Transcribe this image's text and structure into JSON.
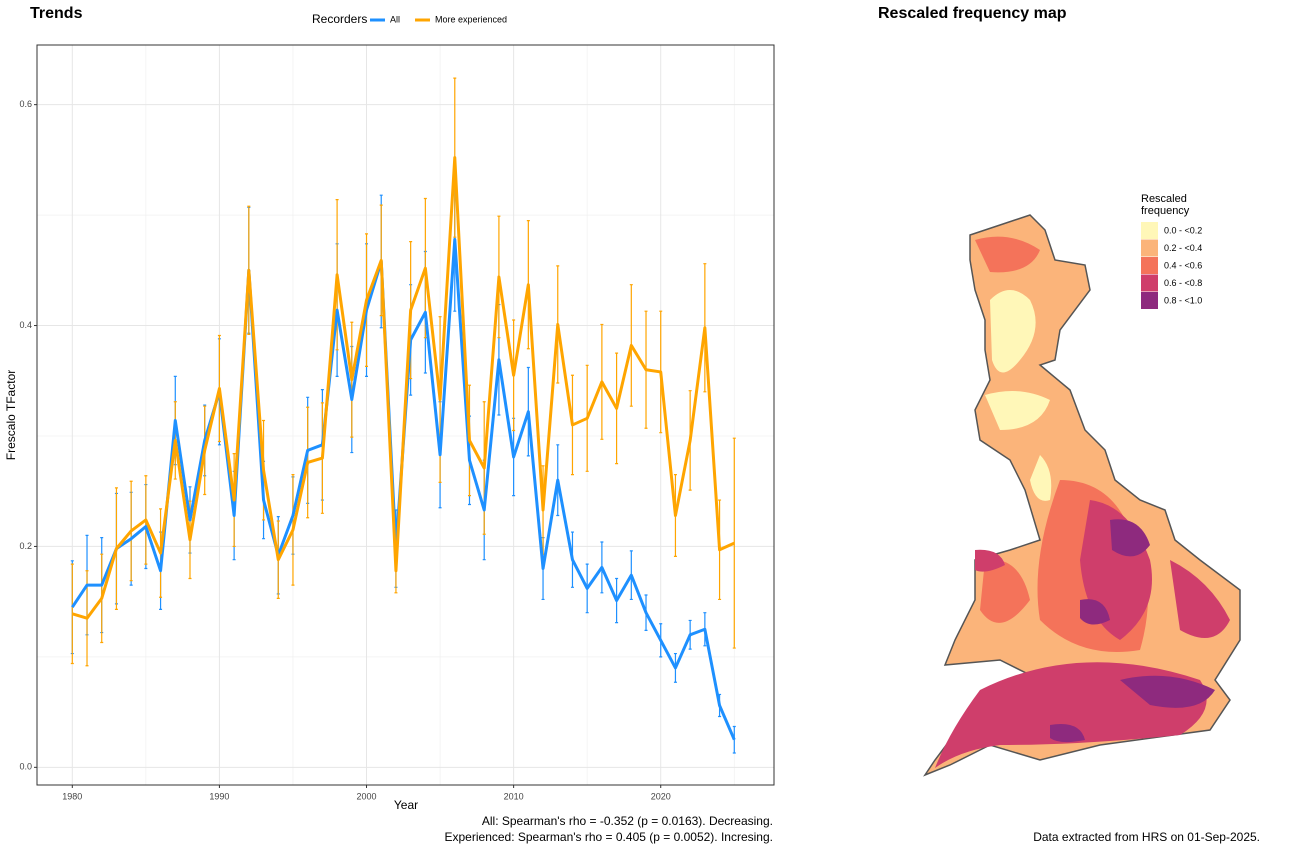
{
  "chart_data": {
    "type": "line",
    "title": "Trends",
    "xlabel": "Year",
    "ylabel": "Frescalo TFactor",
    "legend_title": "Recorders",
    "legend_position": "top",
    "x": [
      1980,
      1981,
      1982,
      1983,
      1984,
      1985,
      1986,
      1987,
      1988,
      1989,
      1990,
      1991,
      1992,
      1993,
      1994,
      1995,
      1996,
      1997,
      1998,
      1999,
      2000,
      2001,
      2002,
      2003,
      2004,
      2005,
      2006,
      2007,
      2008,
      2009,
      2010,
      2011,
      2012,
      2013,
      2014,
      2015,
      2016,
      2017,
      2018,
      2019,
      2020,
      2021,
      2022,
      2023,
      2024,
      2025
    ],
    "series": [
      {
        "name": "All",
        "color": "#1E90FF",
        "values": [
          0.145,
          0.165,
          0.165,
          0.198,
          0.207,
          0.218,
          0.178,
          0.314,
          0.224,
          0.296,
          0.34,
          0.228,
          0.45,
          0.242,
          0.192,
          0.228,
          0.287,
          0.292,
          0.414,
          0.333,
          0.414,
          0.458,
          0.198,
          0.387,
          0.412,
          0.283,
          0.478,
          0.278,
          0.233,
          0.369,
          0.281,
          0.322,
          0.18,
          0.26,
          0.188,
          0.162,
          0.181,
          0.151,
          0.174,
          0.14,
          0.115,
          0.09,
          0.12,
          0.125,
          0.056,
          0.025
        ],
        "errors": [
          0.042,
          0.045,
          0.043,
          0.05,
          0.042,
          0.038,
          0.035,
          0.04,
          0.03,
          0.032,
          0.048,
          0.04,
          0.057,
          0.035,
          0.035,
          0.035,
          0.048,
          0.05,
          0.06,
          0.048,
          0.06,
          0.06,
          0.035,
          0.05,
          0.055,
          0.048,
          0.065,
          0.04,
          0.045,
          0.05,
          0.035,
          0.04,
          0.028,
          0.032,
          0.025,
          0.022,
          0.023,
          0.02,
          0.022,
          0.016,
          0.015,
          0.013,
          0.013,
          0.015,
          0.01,
          0.012
        ]
      },
      {
        "name": "More experienced",
        "color": "#FFA500",
        "values": [
          0.139,
          0.135,
          0.153,
          0.198,
          0.214,
          0.224,
          0.194,
          0.296,
          0.206,
          0.287,
          0.343,
          0.242,
          0.45,
          0.269,
          0.188,
          0.215,
          0.276,
          0.28,
          0.446,
          0.351,
          0.423,
          0.459,
          0.178,
          0.414,
          0.452,
          0.333,
          0.552,
          0.296,
          0.271,
          0.444,
          0.355,
          0.437,
          0.233,
          0.401,
          0.31,
          0.316,
          0.349,
          0.325,
          0.382,
          0.36,
          0.358,
          0.228,
          0.296,
          0.398,
          0.197,
          0.203
        ],
        "errors": [
          0.045,
          0.043,
          0.04,
          0.055,
          0.045,
          0.04,
          0.04,
          0.035,
          0.035,
          0.04,
          0.048,
          0.042,
          0.058,
          0.045,
          0.035,
          0.05,
          0.05,
          0.05,
          0.068,
          0.052,
          0.06,
          0.05,
          0.02,
          0.062,
          0.063,
          0.075,
          0.072,
          0.05,
          0.06,
          0.055,
          0.05,
          0.058,
          0.04,
          0.053,
          0.045,
          0.048,
          0.052,
          0.05,
          0.055,
          0.053,
          0.055,
          0.037,
          0.045,
          0.058,
          0.045,
          0.095
        ]
      }
    ],
    "xlim": [
      1977.6,
      2027.7
    ],
    "ylim": [
      -0.016,
      0.654
    ],
    "xticks": [
      1980,
      1990,
      2000,
      2010,
      2020
    ],
    "yticks": [
      {
        "value": 0,
        "label": "0.0"
      },
      0.2,
      0.4,
      0.6
    ],
    "x_minor_ticks": [
      1985,
      1995,
      2005,
      2015,
      2025
    ],
    "y_minor_ticks": [
      0.1,
      0.3,
      0.5
    ],
    "grid": true,
    "annotations": [
      "All: Spearman's rho = -0.352 (p = 0.0163). Decreasing.",
      "Experienced: Spearman's rho = 0.405 (p = 0.0052). Incresing."
    ]
  },
  "map": {
    "title": "Rescaled frequency map",
    "legend_title": "Rescaled frequency",
    "legend": [
      {
        "label": "0.0 - <0.2",
        "color": "#FFF7B8"
      },
      {
        "label": "0.2 - <0.4",
        "color": "#FBB47A"
      },
      {
        "label": "0.4 - <0.6",
        "color": "#F4735A"
      },
      {
        "label": "0.6 - <0.8",
        "color": "#CF3E6B"
      },
      {
        "label": "0.8 - <1.0",
        "color": "#8E2A7E"
      }
    ],
    "note": "Data extracted from HRS on 01-Sep-2025."
  }
}
